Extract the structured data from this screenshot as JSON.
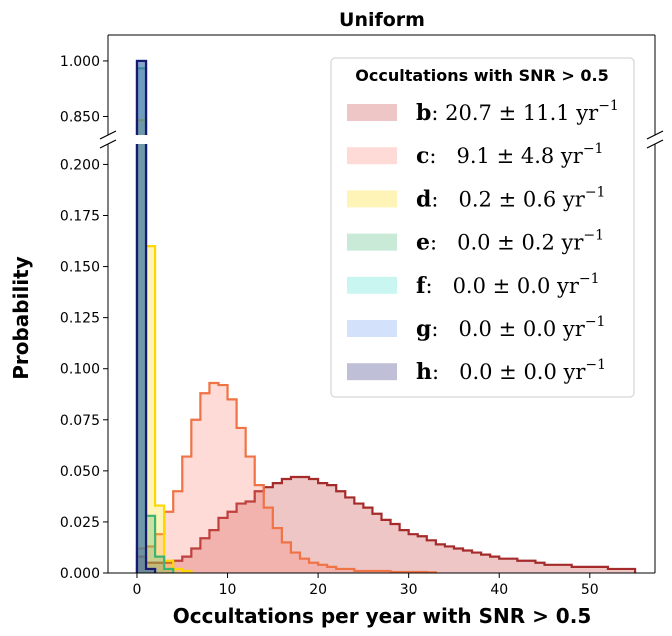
{
  "chart_data": {
    "type": "bar",
    "title": "Uniform",
    "xlabel": "Occultations per year with SNR > 0.5",
    "ylabel": "Probability",
    "xlim": [
      -3.2,
      57.2
    ],
    "ylim_lower": [
      0.0,
      0.21
    ],
    "ylim_upper": [
      0.8,
      1.07
    ],
    "broken_axis": true,
    "bin_width": 1,
    "x_ticks": [
      0,
      10,
      20,
      30,
      40,
      50
    ],
    "y_ticks_lower": [
      0.0,
      0.025,
      0.05,
      0.075,
      0.1,
      0.125,
      0.15,
      0.175,
      0.2
    ],
    "y_ticks_upper": [
      0.85,
      1.0
    ],
    "x_tick_labels": [
      "0",
      "10",
      "20",
      "30",
      "40",
      "50"
    ],
    "y_tick_labels_lower": [
      "0.000",
      "0.025",
      "0.050",
      "0.075",
      "0.100",
      "0.125",
      "0.150",
      "0.175",
      "0.200"
    ],
    "y_tick_labels_upper": [
      "0.850",
      "1.000"
    ],
    "legend": {
      "title": "Occultations with SNR > 0.5",
      "placement": "top-right",
      "entries": [
        {
          "letter": "b",
          "text": ": 20.7 ± 11.1 yr",
          "sup": "−1"
        },
        {
          "letter": "c",
          "text": ":   9.1 ± 4.8 yr",
          "sup": "−1"
        },
        {
          "letter": "d",
          "text": ":   0.2 ± 0.6 yr",
          "sup": "−1"
        },
        {
          "letter": "e",
          "text": ":   0.0 ± 0.2 yr",
          "sup": "−1"
        },
        {
          "letter": "f",
          "text": ":   0.0 ± 0.0 yr",
          "sup": "−1"
        },
        {
          "letter": "g",
          "text": ":   0.0 ± 0.0 yr",
          "sup": "−1"
        },
        {
          "letter": "h",
          "text": ":   0.0 ± 0.0 yr",
          "sup": "−1"
        }
      ]
    },
    "series": [
      {
        "name": "b",
        "fill": "#cd5c5c",
        "edge": "#a52a2a",
        "fill_opacity": 0.35,
        "x_start": 0,
        "values": [
          0.008,
          0.005,
          0.005,
          0.005,
          0.006,
          0.008,
          0.012,
          0.017,
          0.021,
          0.027,
          0.03,
          0.034,
          0.035,
          0.04,
          0.042,
          0.044,
          0.046,
          0.047,
          0.047,
          0.046,
          0.044,
          0.043,
          0.04,
          0.037,
          0.034,
          0.032,
          0.029,
          0.026,
          0.024,
          0.021,
          0.019,
          0.018,
          0.016,
          0.014,
          0.013,
          0.012,
          0.011,
          0.01,
          0.009,
          0.008,
          0.007,
          0.007,
          0.006,
          0.006,
          0.005,
          0.004,
          0.004,
          0.004,
          0.003,
          0.003,
          0.003,
          0.003,
          0.002,
          0.002,
          0.002
        ]
      },
      {
        "name": "c",
        "fill": "#ff7f6e",
        "edge": "#ef7345",
        "fill_opacity": 0.28,
        "x_start": 0,
        "values": [
          0.012,
          0.013,
          0.019,
          0.03,
          0.04,
          0.057,
          0.075,
          0.088,
          0.093,
          0.092,
          0.085,
          0.071,
          0.057,
          0.043,
          0.032,
          0.022,
          0.015,
          0.01,
          0.007,
          0.005,
          0.004,
          0.003,
          0.002,
          0.002,
          0.001,
          0.001,
          0.001,
          0.001,
          0.0005,
          0.0005,
          0.0005,
          0.0005,
          0.0003
        ]
      },
      {
        "name": "d",
        "fill": "#ffd700",
        "edge": "#ffd700",
        "fill_opacity": 0.28,
        "x_start": 0,
        "values": [
          0.84,
          0.16,
          0.033,
          0.006,
          0.002,
          0.001
        ]
      },
      {
        "name": "e",
        "fill": "#3cb371",
        "edge": "#3cb371",
        "fill_opacity": 0.28,
        "x_start": 0,
        "values": [
          0.98,
          0.028,
          0.008,
          0.002
        ]
      },
      {
        "name": "f",
        "fill": "#40e0d0",
        "edge": "#40e0d0",
        "fill_opacity": 0.28,
        "x_start": 0,
        "values": [
          1.0,
          0.002
        ]
      },
      {
        "name": "g",
        "fill": "#6495ed",
        "edge": "#6495ed",
        "fill_opacity": 0.28,
        "x_start": 0,
        "values": [
          1.0,
          0.002
        ]
      },
      {
        "name": "h",
        "fill": "#191970",
        "edge": "#191970",
        "fill_opacity": 0.28,
        "x_start": 0,
        "values": [
          1.0,
          0.002
        ]
      }
    ]
  }
}
